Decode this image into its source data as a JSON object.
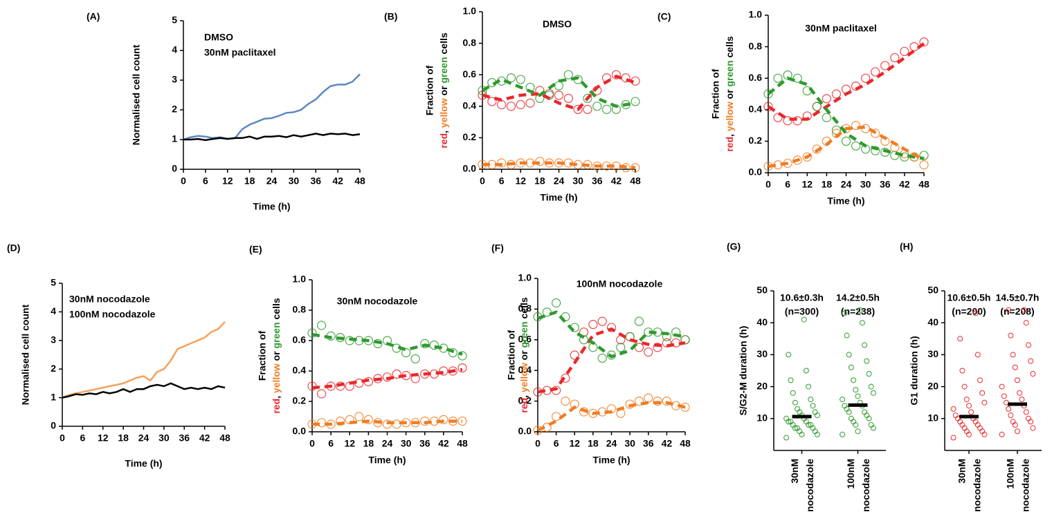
{
  "chart_data": [
    {
      "type": "line",
      "panel_label": "(A)",
      "ylabel": "Normalised cell count",
      "xlabel": "Time (h)",
      "xlim": [
        0,
        48
      ],
      "xticks": [
        0,
        6,
        12,
        18,
        24,
        30,
        36,
        42,
        48
      ],
      "ylim": [
        0,
        5
      ],
      "yticks": [
        0,
        1,
        2,
        3,
        4,
        5
      ],
      "x": [
        0,
        2,
        4,
        6,
        8,
        10,
        12,
        14,
        16,
        18,
        20,
        22,
        24,
        26,
        28,
        30,
        32,
        34,
        36,
        38,
        40,
        42,
        44,
        46,
        48
      ],
      "series": [
        {
          "name": "DMSO",
          "color": "#5b87c0",
          "values": [
            1.0,
            1.08,
            1.12,
            1.1,
            1.05,
            1.08,
            1.03,
            1.04,
            1.35,
            1.5,
            1.6,
            1.7,
            1.72,
            1.8,
            1.9,
            1.92,
            2.0,
            2.2,
            2.35,
            2.6,
            2.8,
            2.85,
            2.85,
            2.95,
            3.2
          ]
        },
        {
          "name": "30nM paclitaxel",
          "color": "#000000",
          "values": [
            1.0,
            1.0,
            1.02,
            0.98,
            1.02,
            1.05,
            1.02,
            1.05,
            1.05,
            1.1,
            1.02,
            1.1,
            1.1,
            1.12,
            1.08,
            1.15,
            1.1,
            1.15,
            1.2,
            1.15,
            1.2,
            1.18,
            1.2,
            1.15,
            1.18
          ]
        }
      ]
    },
    {
      "type": "scatter",
      "panel_label": "(B)",
      "title": "DMSO",
      "ylabel": "Fraction of",
      "ylabel_parts": [
        {
          "text": "red",
          "color": "#e8282b"
        },
        {
          "text": ", "
        },
        {
          "text": "yellow",
          "color": "#f07c22"
        },
        {
          "text": " or "
        },
        {
          "text": "green",
          "color": "#2e9a2e"
        },
        {
          "text": " cells"
        }
      ],
      "xlabel": "Time (h)",
      "xlim": [
        0,
        48
      ],
      "xticks": [
        0,
        6,
        12,
        18,
        24,
        30,
        36,
        42,
        48
      ],
      "ylim": [
        0,
        1
      ],
      "yticks": [
        {
          "value": 0,
          "label": "0.0"
        },
        0.2,
        0.4,
        0.6,
        0.8,
        {
          "value": 1,
          "label": "1.0"
        }
      ],
      "x": [
        0,
        3,
        6,
        9,
        12,
        15,
        18,
        21,
        24,
        27,
        30,
        33,
        36,
        39,
        42,
        45,
        48
      ],
      "fit_x": [
        0,
        6,
        12,
        18,
        24,
        30,
        36,
        42,
        48
      ],
      "series": [
        {
          "color": "#e8282b",
          "values": [
            0.47,
            0.43,
            0.41,
            0.4,
            0.41,
            0.42,
            0.5,
            0.48,
            0.47,
            0.45,
            0.38,
            0.38,
            0.5,
            0.58,
            0.6,
            0.58,
            0.56
          ],
          "fit": [
            0.47,
            0.44,
            0.47,
            0.48,
            0.42,
            0.38,
            0.52,
            0.59,
            0.55
          ]
        },
        {
          "color": "#2e9a2e",
          "values": [
            0.5,
            0.55,
            0.56,
            0.58,
            0.57,
            0.52,
            0.45,
            0.47,
            0.53,
            0.6,
            0.57,
            0.45,
            0.4,
            0.38,
            0.38,
            0.41,
            0.43
          ],
          "fit": [
            0.5,
            0.57,
            0.52,
            0.47,
            0.56,
            0.58,
            0.45,
            0.4,
            0.42
          ]
        },
        {
          "color": "#f07c22",
          "values": [
            0.03,
            0.03,
            0.04,
            0.03,
            0.04,
            0.04,
            0.05,
            0.04,
            0.04,
            0.04,
            0.03,
            0.03,
            0.02,
            0.02,
            0.02,
            0.01,
            0.01
          ],
          "fit": [
            0.03,
            0.03,
            0.04,
            0.04,
            0.04,
            0.03,
            0.02,
            0.02,
            0.01
          ]
        }
      ]
    },
    {
      "type": "scatter",
      "panel_label": "(C)",
      "title": "30nM paclitaxel",
      "ylabel": "Fraction of",
      "ylabel_parts": [
        {
          "text": "red",
          "color": "#e8282b"
        },
        {
          "text": ", "
        },
        {
          "text": "yellow",
          "color": "#f07c22"
        },
        {
          "text": " or "
        },
        {
          "text": "green",
          "color": "#2e9a2e"
        },
        {
          "text": " cells"
        }
      ],
      "xlabel": "Time (h)",
      "xlim": [
        0,
        48
      ],
      "xticks": [
        0,
        6,
        12,
        18,
        24,
        30,
        36,
        42,
        48
      ],
      "ylim": [
        0,
        1
      ],
      "yticks": [
        {
          "value": 0,
          "label": "0.0"
        },
        0.2,
        0.4,
        0.6,
        0.8,
        {
          "value": 1,
          "label": "1.0"
        }
      ],
      "x": [
        0,
        3,
        6,
        9,
        12,
        15,
        18,
        21,
        24,
        27,
        30,
        33,
        36,
        39,
        42,
        45,
        48
      ],
      "fit_x": [
        0,
        6,
        12,
        18,
        24,
        30,
        36,
        42,
        48
      ],
      "series": [
        {
          "color": "#e8282b",
          "values": [
            0.42,
            0.35,
            0.33,
            0.33,
            0.36,
            0.42,
            0.47,
            0.5,
            0.53,
            0.55,
            0.6,
            0.64,
            0.68,
            0.73,
            0.77,
            0.8,
            0.83
          ],
          "fit": [
            0.42,
            0.34,
            0.34,
            0.42,
            0.5,
            0.56,
            0.64,
            0.73,
            0.82
          ]
        },
        {
          "color": "#2e9a2e",
          "values": [
            0.5,
            0.6,
            0.62,
            0.6,
            0.52,
            0.42,
            0.35,
            0.27,
            0.2,
            0.17,
            0.15,
            0.14,
            0.13,
            0.11,
            0.1,
            0.1,
            0.11
          ],
          "fit": [
            0.5,
            0.6,
            0.56,
            0.4,
            0.25,
            0.17,
            0.14,
            0.11,
            0.09
          ]
        },
        {
          "color": "#f07c22",
          "values": [
            0.04,
            0.05,
            0.06,
            0.08,
            0.1,
            0.15,
            0.2,
            0.25,
            0.28,
            0.3,
            0.28,
            0.25,
            0.2,
            0.16,
            0.12,
            0.1,
            0.05
          ],
          "fit": [
            0.04,
            0.06,
            0.1,
            0.18,
            0.28,
            0.29,
            0.22,
            0.15,
            0.08
          ]
        }
      ]
    },
    {
      "type": "line",
      "panel_label": "(D)",
      "ylabel": "Normalised cell count",
      "xlabel": "Time (h)",
      "xlim": [
        0,
        48
      ],
      "xticks": [
        0,
        6,
        12,
        18,
        24,
        30,
        36,
        42,
        48
      ],
      "ylim": [
        0,
        5
      ],
      "yticks": [
        0,
        1,
        2,
        3,
        4,
        5
      ],
      "x": [
        0,
        2,
        4,
        6,
        8,
        10,
        12,
        14,
        16,
        18,
        20,
        22,
        24,
        26,
        28,
        30,
        32,
        34,
        36,
        38,
        40,
        42,
        44,
        46,
        48
      ],
      "series": [
        {
          "name": "30nM nocodazole",
          "color": "#f5a25a",
          "values": [
            1.0,
            1.1,
            1.15,
            1.2,
            1.25,
            1.3,
            1.35,
            1.4,
            1.45,
            1.5,
            1.6,
            1.7,
            1.75,
            1.6,
            1.9,
            2.0,
            2.3,
            2.7,
            2.8,
            2.9,
            3.0,
            3.1,
            3.3,
            3.4,
            3.65
          ]
        },
        {
          "name": "100nM nocodazole",
          "color": "#000000",
          "values": [
            1.0,
            1.05,
            1.12,
            1.1,
            1.15,
            1.12,
            1.2,
            1.15,
            1.2,
            1.3,
            1.2,
            1.3,
            1.3,
            1.4,
            1.45,
            1.4,
            1.5,
            1.4,
            1.3,
            1.35,
            1.3,
            1.35,
            1.3,
            1.4,
            1.35
          ]
        }
      ]
    },
    {
      "type": "scatter",
      "panel_label": "(E)",
      "title": "30nM nocodazole",
      "ylabel": "Fraction of",
      "ylabel_parts": [
        {
          "text": "red",
          "color": "#e8282b"
        },
        {
          "text": ", "
        },
        {
          "text": "yellow",
          "color": "#f07c22"
        },
        {
          "text": " or "
        },
        {
          "text": "green",
          "color": "#2e9a2e"
        },
        {
          "text": " cells"
        }
      ],
      "xlabel": "Time (h)",
      "xlim": [
        0,
        48
      ],
      "xticks": [
        0,
        6,
        12,
        18,
        24,
        30,
        36,
        42,
        48
      ],
      "ylim": [
        0,
        1
      ],
      "yticks": [
        {
          "value": 0,
          "label": "0.0"
        },
        0.2,
        0.4,
        0.6,
        0.8,
        {
          "value": 1,
          "label": "1.0"
        }
      ],
      "x": [
        0,
        3,
        6,
        9,
        12,
        15,
        18,
        21,
        24,
        27,
        30,
        33,
        36,
        39,
        42,
        45,
        48
      ],
      "fit_x": [
        0,
        6,
        12,
        18,
        24,
        30,
        36,
        42,
        48
      ],
      "series": [
        {
          "color": "#e8282b",
          "values": [
            0.3,
            0.25,
            0.3,
            0.3,
            0.3,
            0.32,
            0.33,
            0.35,
            0.36,
            0.38,
            0.37,
            0.35,
            0.38,
            0.38,
            0.4,
            0.4,
            0.42
          ],
          "fit": [
            0.29,
            0.3,
            0.32,
            0.34,
            0.35,
            0.37,
            0.38,
            0.39,
            0.41
          ]
        },
        {
          "color": "#2e9a2e",
          "values": [
            0.65,
            0.7,
            0.63,
            0.62,
            0.6,
            0.6,
            0.6,
            0.58,
            0.6,
            0.55,
            0.52,
            0.48,
            0.58,
            0.57,
            0.55,
            0.52,
            0.5
          ],
          "fit": [
            0.64,
            0.62,
            0.61,
            0.6,
            0.58,
            0.54,
            0.57,
            0.55,
            0.51
          ]
        },
        {
          "color": "#f07c22",
          "values": [
            0.05,
            0.06,
            0.05,
            0.07,
            0.08,
            0.1,
            0.08,
            0.06,
            0.05,
            0.05,
            0.06,
            0.06,
            0.07,
            0.07,
            0.08,
            0.07,
            0.07
          ],
          "fit": [
            0.05,
            0.05,
            0.06,
            0.07,
            0.06,
            0.06,
            0.06,
            0.07,
            0.07
          ]
        }
      ]
    },
    {
      "type": "scatter",
      "panel_label": "(F)",
      "title": "100nM nocodazole",
      "ylabel": "Fraction of",
      "ylabel_parts": [
        {
          "text": "red",
          "color": "#e8282b"
        },
        {
          "text": ", "
        },
        {
          "text": "yellow",
          "color": "#f07c22"
        },
        {
          "text": " or "
        },
        {
          "text": "green",
          "color": "#2e9a2e"
        },
        {
          "text": " cells"
        }
      ],
      "xlabel": "Time (h)",
      "xlim": [
        0,
        48
      ],
      "xticks": [
        0,
        6,
        12,
        18,
        24,
        30,
        36,
        42,
        48
      ],
      "ylim": [
        0,
        1
      ],
      "yticks": [
        {
          "value": 0,
          "label": "0.0"
        },
        0.2,
        0.4,
        0.6,
        0.8,
        {
          "value": 1,
          "label": "1.0"
        }
      ],
      "x": [
        0,
        3,
        6,
        9,
        12,
        15,
        18,
        21,
        24,
        27,
        30,
        33,
        36,
        39,
        42,
        45,
        48
      ],
      "fit_x": [
        0,
        6,
        12,
        18,
        24,
        30,
        36,
        42,
        48
      ],
      "series": [
        {
          "color": "#e8282b",
          "values": [
            0.26,
            0.27,
            0.27,
            0.35,
            0.5,
            0.65,
            0.7,
            0.72,
            0.68,
            0.6,
            0.62,
            0.55,
            0.52,
            0.55,
            0.58,
            0.58,
            0.6
          ],
          "fit": [
            0.26,
            0.28,
            0.45,
            0.63,
            0.67,
            0.6,
            0.57,
            0.56,
            0.58
          ]
        },
        {
          "color": "#2e9a2e",
          "values": [
            0.75,
            0.78,
            0.84,
            0.75,
            0.68,
            0.6,
            0.55,
            0.48,
            0.5,
            0.55,
            0.62,
            0.72,
            0.65,
            0.65,
            0.62,
            0.65,
            0.6
          ],
          "fit": [
            0.74,
            0.78,
            0.65,
            0.58,
            0.49,
            0.53,
            0.65,
            0.64,
            0.62
          ]
        },
        {
          "color": "#f07c22",
          "values": [
            0.01,
            0.03,
            0.1,
            0.2,
            0.18,
            0.13,
            0.12,
            0.13,
            0.15,
            0.12,
            0.18,
            0.2,
            0.22,
            0.2,
            0.2,
            0.17,
            0.16
          ],
          "fit": [
            0.01,
            0.07,
            0.16,
            0.12,
            0.13,
            0.17,
            0.19,
            0.19,
            0.16
          ]
        }
      ]
    },
    {
      "type": "strip",
      "panel_label": "(G)",
      "ylabel": "S/G2-M duration (h)",
      "color": "#2e9a2e",
      "ylim": [
        0,
        50
      ],
      "yticks": [
        10,
        20,
        30,
        40,
        50
      ],
      "categories": [
        [
          "30nM",
          "nocodazole"
        ],
        [
          "100nM",
          "nocodazole"
        ]
      ],
      "means": [
        10.6,
        14.2
      ],
      "value_labels": [
        "10.6±0.3h",
        "14.2±0.5h"
      ],
      "n_labels": [
        "(n=300)",
        "(n=238)"
      ],
      "values": [
        [
          4,
          5,
          5,
          6,
          6,
          7,
          7,
          7,
          8,
          8,
          8,
          9,
          9,
          9,
          10,
          10,
          11,
          11,
          12,
          12,
          13,
          14,
          15,
          16,
          18,
          20,
          22,
          25,
          30,
          41
        ],
        [
          5,
          6,
          7,
          8,
          8,
          9,
          10,
          10,
          11,
          12,
          12,
          13,
          14,
          14,
          15,
          16,
          17,
          18,
          19,
          20,
          22,
          24,
          26,
          28,
          30,
          33,
          36,
          40,
          43,
          44
        ]
      ]
    },
    {
      "type": "strip",
      "panel_label": "(H)",
      "ylabel": "G1 duration (h)",
      "color": "#e8282b",
      "ylim": [
        0,
        50
      ],
      "yticks": [
        10,
        20,
        30,
        40,
        50
      ],
      "categories": [
        [
          "30nM",
          "nocodazole"
        ],
        [
          "100nM",
          "nocodazole"
        ]
      ],
      "means": [
        10.6,
        14.5
      ],
      "value_labels": [
        "10.6±0.5h",
        "14.5±0.7h"
      ],
      "n_labels": [
        "(n=200)",
        "(n=208)"
      ],
      "values": [
        [
          4,
          5,
          5,
          6,
          6,
          7,
          7,
          8,
          8,
          9,
          9,
          10,
          10,
          11,
          12,
          13,
          14,
          15,
          16,
          18,
          20,
          22,
          25,
          30,
          35,
          43
        ],
        [
          5,
          6,
          7,
          8,
          9,
          9,
          10,
          11,
          12,
          13,
          14,
          15,
          16,
          17,
          18,
          20,
          22,
          24,
          26,
          28,
          30,
          33,
          36,
          40,
          44,
          44
        ]
      ]
    }
  ]
}
